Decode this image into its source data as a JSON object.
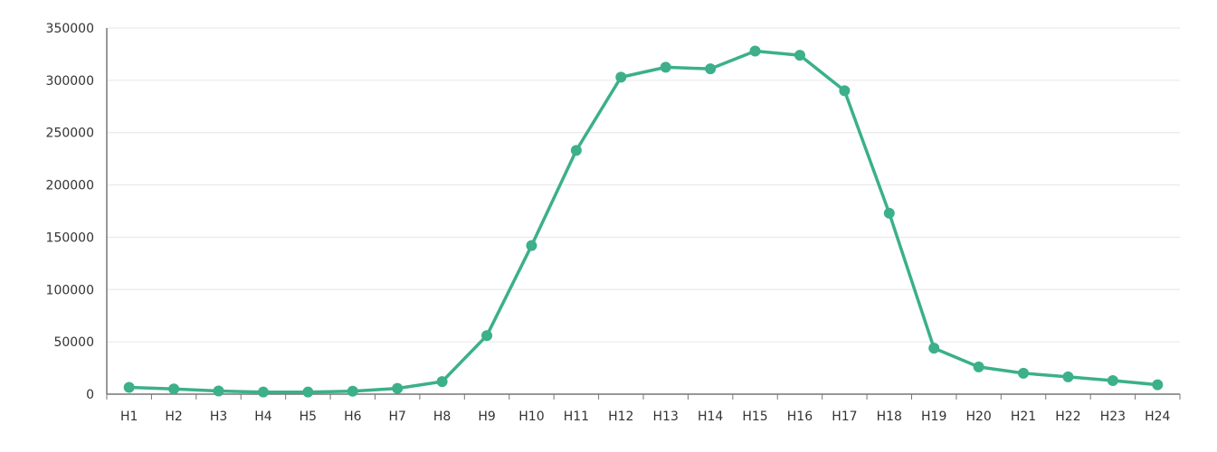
{
  "chart_data": {
    "type": "line",
    "title": "",
    "xlabel": "",
    "ylabel": "",
    "categories": [
      "H1",
      "H2",
      "H3",
      "H4",
      "H5",
      "H6",
      "H7",
      "H8",
      "H9",
      "H10",
      "H11",
      "H12",
      "H13",
      "H14",
      "H15",
      "H16",
      "H17",
      "H18",
      "H19",
      "H20",
      "H21",
      "H22",
      "H23",
      "H24"
    ],
    "series": [
      {
        "values": [
          6500,
          5000,
          3000,
          2000,
          2000,
          2800,
          5500,
          12000,
          56000,
          142000,
          233000,
          303000,
          312500,
          311000,
          328000,
          324000,
          290000,
          173000,
          44000,
          26000,
          20000,
          16500,
          13000,
          9000
        ],
        "color": "#3bb08a"
      }
    ],
    "ylim": [
      0,
      350000
    ],
    "yticks": [
      0,
      50000,
      100000,
      150000,
      200000,
      250000,
      300000,
      350000
    ],
    "grid": true,
    "legend": "none"
  }
}
